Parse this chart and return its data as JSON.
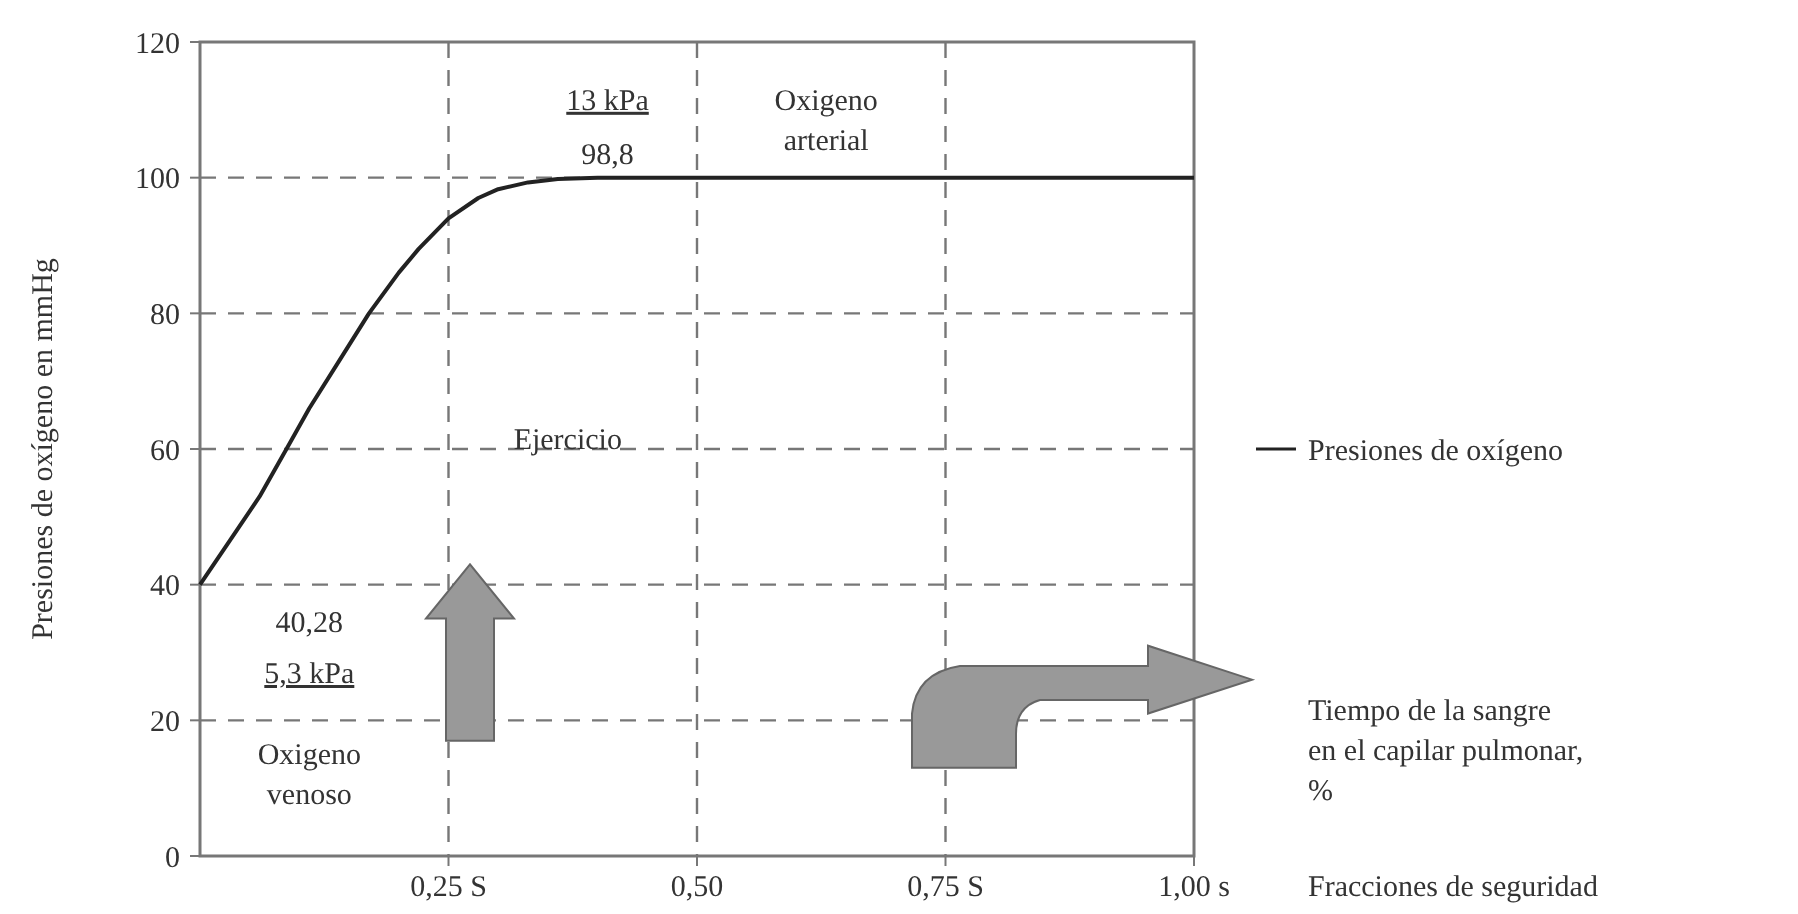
{
  "chart_data": {
    "type": "line",
    "ylabel": "Presiones de oxígeno en mmHg",
    "xlabel": "Fracciones de seguridad",
    "x": [
      0,
      0.03,
      0.06,
      0.087,
      0.11,
      0.14,
      0.17,
      0.2,
      0.22,
      0.25,
      0.28,
      0.3,
      0.33,
      0.36,
      0.4,
      0.5,
      0.75,
      1
    ],
    "series": [
      {
        "name": "Presiones de oxígeno",
        "color": "#222222",
        "values": [
          40,
          46.5,
          53,
          60,
          66,
          73,
          80,
          86,
          89.5,
          94,
          97,
          98.3,
          99.3,
          99.8,
          100,
          100,
          100,
          100
        ]
      }
    ],
    "xlim": [
      0,
      1
    ],
    "ylim": [
      0,
      120
    ],
    "xticks": [
      {
        "value": 0.25,
        "label": "0,25 S"
      },
      {
        "value": 0.5,
        "label": "0,50"
      },
      {
        "value": 0.75,
        "label": "0,75 S"
      },
      {
        "value": 1,
        "label": "1,00 s"
      }
    ],
    "yticks": [
      0,
      20,
      40,
      60,
      80,
      100,
      120
    ],
    "grid": true,
    "legend": "right",
    "marker": "none",
    "line_style": "solid",
    "annotations": [
      "13 kPa",
      "98,8",
      "Oxigeno\narterial",
      "Ejercicio",
      "40,28",
      "5,3 kPa",
      "Oxigeno\nvenoso",
      "Tiempo de la sangre\nen el capilar pulmonar,\n%"
    ]
  }
}
